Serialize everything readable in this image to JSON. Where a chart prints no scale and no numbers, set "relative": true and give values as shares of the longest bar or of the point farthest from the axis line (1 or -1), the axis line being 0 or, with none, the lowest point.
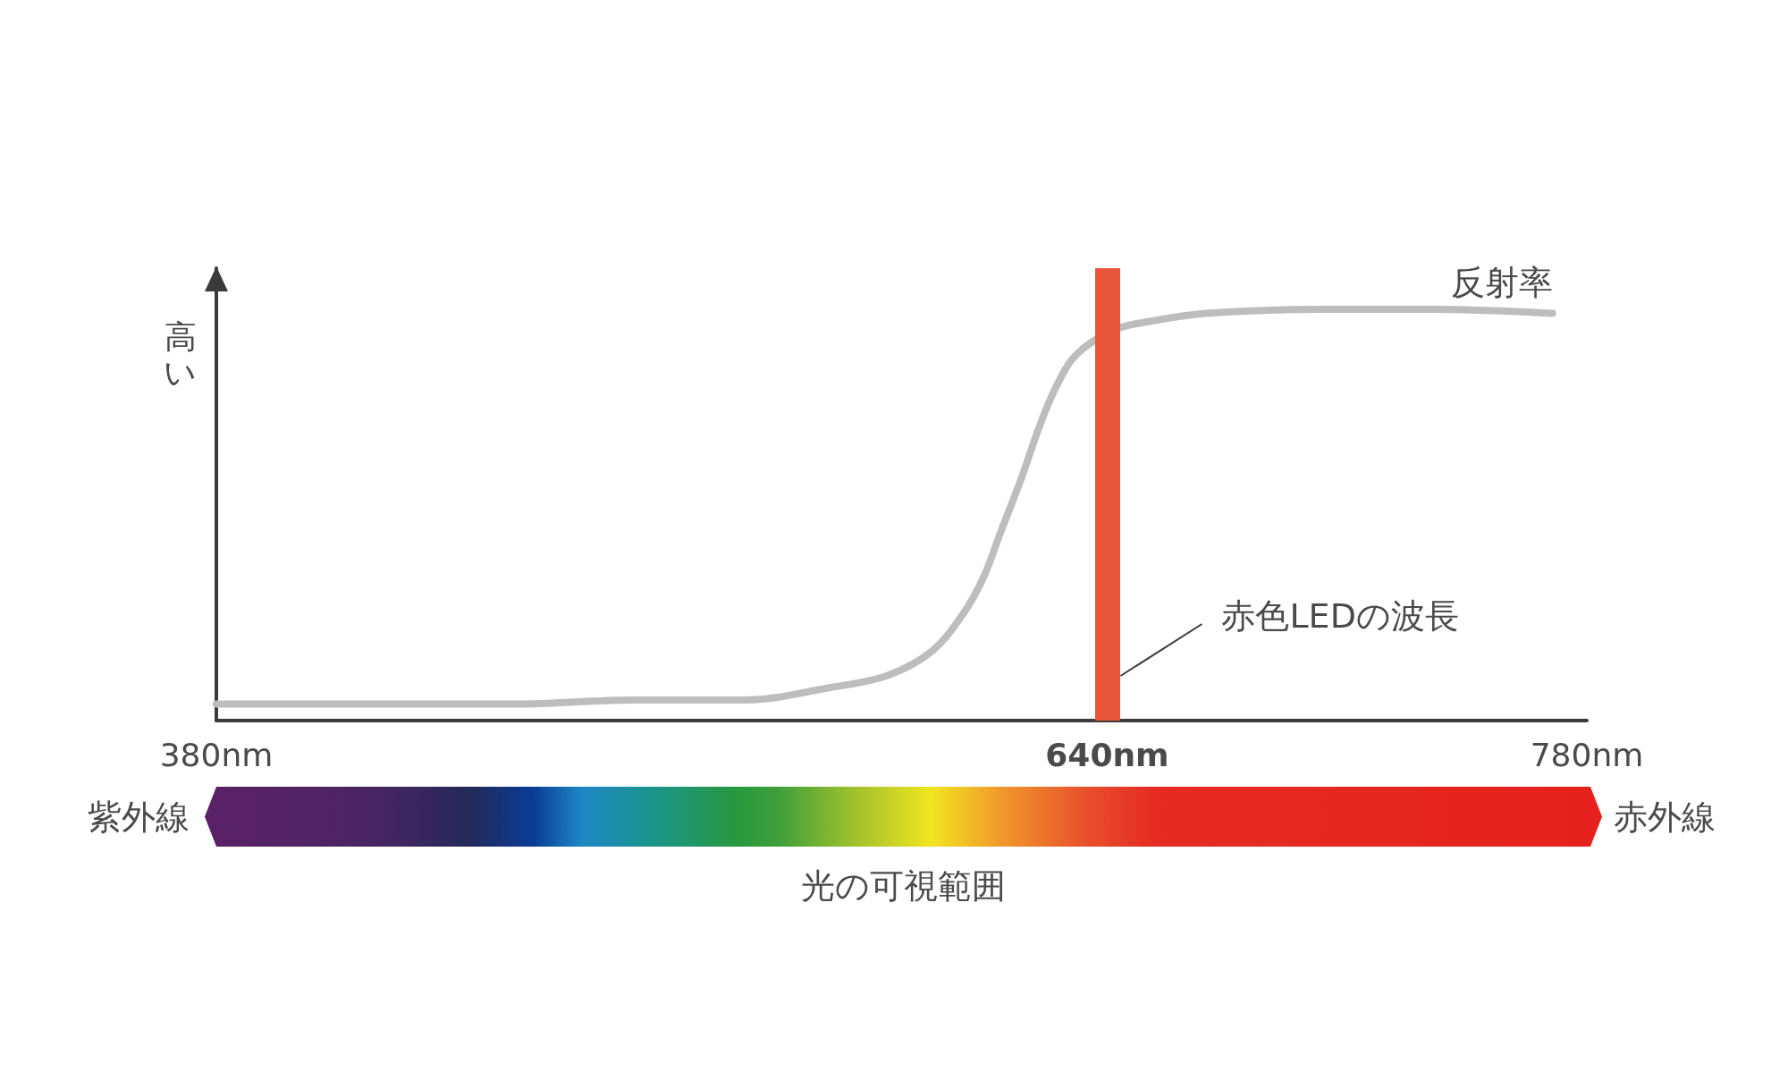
{
  "chart_data": {
    "type": "line",
    "relative": true,
    "ylabel": "高い",
    "x": [
      380,
      420,
      467,
      502,
      534,
      559,
      576,
      589,
      598,
      604,
      609,
      615,
      620,
      625,
      631,
      642,
      652,
      669,
      702,
      736,
      770
    ],
    "series": [
      {
        "name": "反射率",
        "color": "#bdbdbd",
        "values": [
          0.04,
          0.04,
          0.04,
          0.05,
          0.05,
          0.08,
          0.11,
          0.17,
          0.26,
          0.35,
          0.46,
          0.59,
          0.71,
          0.81,
          0.89,
          0.95,
          0.97,
          0.99,
          1.0,
          1.0,
          0.99
        ]
      }
    ],
    "xlim": [
      380,
      780
    ],
    "xticks": [
      {
        "value": 380,
        "label": "380nm"
      },
      {
        "value": 640,
        "label": "640nm"
      },
      {
        "value": 780,
        "label": "780nm"
      }
    ],
    "ref_lines": [
      {
        "axis": "x",
        "value": 640,
        "label": "赤色LEDの波長",
        "color": "#e8553a"
      }
    ],
    "annotations": [
      "紫外線",
      "赤外線",
      "光の可視範囲"
    ],
    "marker": "none",
    "line_style": "solid"
  }
}
